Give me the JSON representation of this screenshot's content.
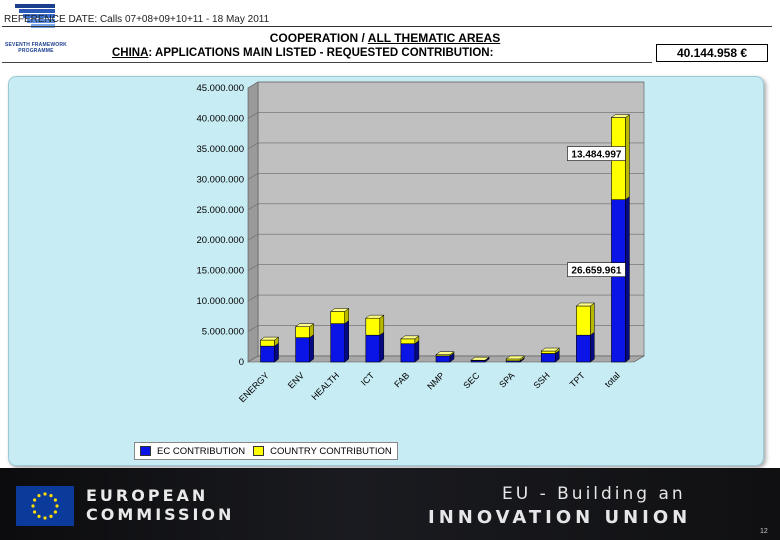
{
  "header": {
    "reference_date": "REFERENCE DATE:  Calls 07+08+09+10+11 - 18 May 2011",
    "logo_text": "SEVENTH FRAMEWORK PROGRAMME",
    "title_prefix": "COOPERATION  / ",
    "title_emph": "ALL THEMATIC AREAS",
    "subtitle_country": "CHINA",
    "subtitle_rest": ": APPLICATIONS MAIN LISTED - REQUESTED CONTRIBUTION:",
    "total_value": "40.144.958 €"
  },
  "chart_data": {
    "type": "bar",
    "stacked": true,
    "title": "",
    "xlabel": "",
    "ylabel": "",
    "ylim": [
      0,
      45000000
    ],
    "yticks": [
      0,
      5000000,
      10000000,
      15000000,
      20000000,
      25000000,
      30000000,
      35000000,
      40000000,
      45000000
    ],
    "ytick_labels": [
      "0",
      "5.000.000",
      "10.000.000",
      "15.000.000",
      "20.000.000",
      "25.000.000",
      "30.000.000",
      "35.000.000",
      "40.000.000",
      "45.000.000"
    ],
    "categories": [
      "ENERGY",
      "ENV",
      "HEALTH",
      "ICT",
      "FAB",
      "NMP",
      "SEC",
      "SPA",
      "SSH",
      "TPT",
      "total"
    ],
    "series": [
      {
        "name": "EC CONTRIBUTION",
        "color": "#0a14e6",
        "values": [
          2600000,
          4000000,
          6300000,
          4400000,
          3000000,
          1000000,
          250000,
          200000,
          1400000,
          4400000,
          26659961
        ]
      },
      {
        "name": "COUNTRY CONTRIBUTION",
        "color": "#ffff00",
        "values": [
          1000000,
          1800000,
          2000000,
          2800000,
          800000,
          200000,
          50000,
          300000,
          400000,
          4800000,
          13484997
        ]
      }
    ],
    "annotations": [
      {
        "text": "13.484.997",
        "category": "total",
        "series": "COUNTRY CONTRIBUTION"
      },
      {
        "text": "26.659.961",
        "category": "total",
        "series": "EC CONTRIBUTION"
      }
    ],
    "legend": "bottom-left",
    "colors": {
      "wall": "#c0c0c0",
      "floor": "#a8a8a8",
      "panel": "#c8ecf4"
    }
  },
  "legend": {
    "ec_label": "EC CONTRIBUTION",
    "country_label": "COUNTRY CONTRIBUTION"
  },
  "footer": {
    "org_line1": "EUROPEAN",
    "org_line2": "COMMISSION",
    "slogan_line1": "EU - Building an",
    "slogan_line2": "INNOVATION UNION",
    "page_number": "12"
  }
}
